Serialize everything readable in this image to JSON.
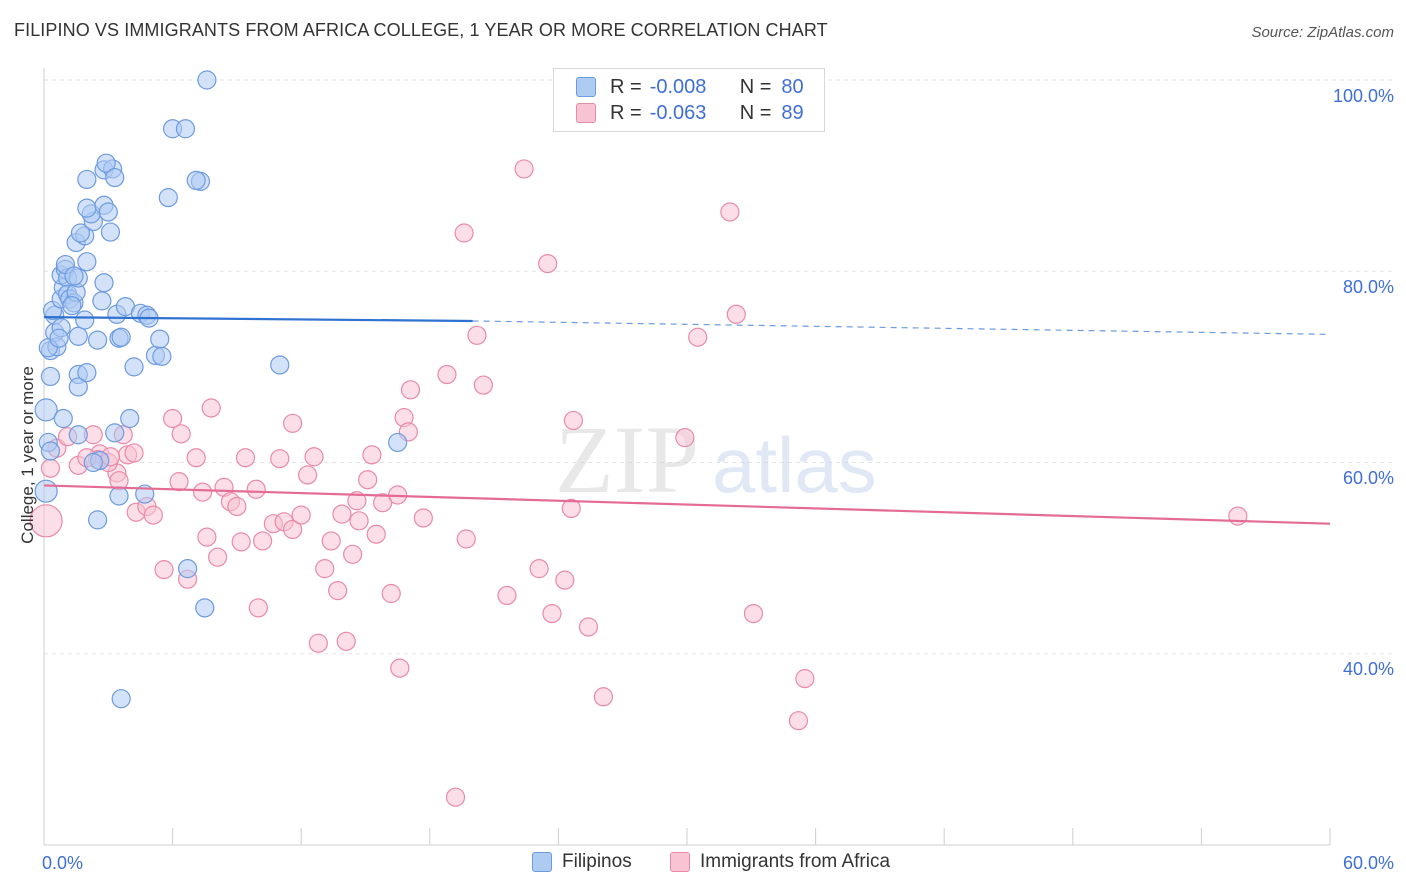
{
  "title": "FILIPINO VS IMMIGRANTS FROM AFRICA COLLEGE, 1 YEAR OR MORE CORRELATION CHART",
  "source": "Source: ZipAtlas.com",
  "watermark": {
    "zip": "ZIP",
    "atlas": "atlas"
  },
  "legend": {
    "rows": [
      {
        "r_label": "R =",
        "r_value": "-0.008",
        "n_label": "N =",
        "n_value": "80"
      },
      {
        "r_label": "R =",
        "r_value": "-0.063",
        "n_label": "N =",
        "n_value": "89"
      }
    ]
  },
  "bottom_legend": {
    "filipinos": "Filipinos",
    "africa": "Immigrants from Africa"
  },
  "colors": {
    "blue_fill": "#aecbf2",
    "blue_stroke": "#6d9be0",
    "blue_line": "#2f72d1",
    "pink_fill": "#f8c3d3",
    "pink_stroke": "#ea8aa9",
    "pink_line": "#e46b93",
    "grid": "#e3e3e3",
    "axis_text": "#3f6fd6"
  },
  "chart_data": {
    "type": "scatter",
    "title": "FILIPINO VS IMMIGRANTS FROM AFRICA COLLEGE, 1 YEAR OR MORE CORRELATION CHART",
    "xlabel": "",
    "ylabel": "College, 1 year or more",
    "xlim": [
      0,
      60
    ],
    "ylim": [
      20,
      100
    ],
    "x_tick_labels": [
      "0.0%",
      "60.0%"
    ],
    "y_tick_labels": [
      "100.0%",
      "80.0%",
      "60.0%",
      "40.0%"
    ],
    "y_ticks": [
      100,
      80,
      60,
      40
    ],
    "grid": true,
    "legend_position": "top-center",
    "series": [
      {
        "name": "Filipinos",
        "r": -0.008,
        "n": 80,
        "trend": {
          "x": [
            0,
            20
          ],
          "y": [
            75.2,
            74.8
          ],
          "dashed_to": [
            60,
            73.4
          ]
        },
        "points": [
          [
            0.1,
            65.5
          ],
          [
            0.2,
            62.1
          ],
          [
            0.1,
            57.0
          ],
          [
            0.3,
            69.0
          ],
          [
            0.3,
            71.7
          ],
          [
            0.5,
            73.6
          ],
          [
            0.6,
            72.1
          ],
          [
            0.5,
            75.4
          ],
          [
            0.4,
            75.9
          ],
          [
            0.8,
            74.1
          ],
          [
            0.8,
            77.1
          ],
          [
            0.9,
            78.3
          ],
          [
            0.8,
            79.6
          ],
          [
            1.0,
            80.2
          ],
          [
            1.1,
            79.3
          ],
          [
            1.1,
            77.6
          ],
          [
            1.2,
            77.1
          ],
          [
            1.4,
            76.7
          ],
          [
            1.5,
            77.8
          ],
          [
            1.6,
            79.3
          ],
          [
            1.0,
            80.7
          ],
          [
            1.6,
            73.2
          ],
          [
            1.6,
            69.2
          ],
          [
            1.6,
            67.9
          ],
          [
            2.0,
            69.4
          ],
          [
            1.6,
            62.9
          ],
          [
            0.9,
            64.6
          ],
          [
            1.5,
            83.0
          ],
          [
            1.9,
            83.7
          ],
          [
            1.7,
            84.0
          ],
          [
            2.3,
            85.2
          ],
          [
            2.2,
            86.0
          ],
          [
            2.0,
            86.6
          ],
          [
            2.8,
            86.9
          ],
          [
            3.0,
            86.2
          ],
          [
            2.0,
            89.6
          ],
          [
            2.8,
            90.6
          ],
          [
            3.2,
            90.7
          ],
          [
            2.9,
            91.3
          ],
          [
            3.3,
            89.8
          ],
          [
            2.0,
            81.0
          ],
          [
            3.1,
            84.1
          ],
          [
            2.8,
            78.8
          ],
          [
            3.4,
            75.5
          ],
          [
            3.5,
            73.0
          ],
          [
            3.8,
            76.3
          ],
          [
            4.2,
            70.0
          ],
          [
            4.5,
            75.6
          ],
          [
            4.8,
            75.4
          ],
          [
            5.2,
            71.2
          ],
          [
            5.4,
            72.9
          ],
          [
            5.5,
            71.1
          ],
          [
            5.8,
            87.7
          ],
          [
            6.0,
            94.9
          ],
          [
            6.6,
            94.9
          ],
          [
            7.3,
            89.4
          ],
          [
            7.1,
            89.5
          ],
          [
            7.6,
            100.0
          ],
          [
            3.3,
            63.1
          ],
          [
            4.0,
            64.6
          ],
          [
            2.6,
            60.2
          ],
          [
            2.3,
            60.0
          ],
          [
            3.5,
            56.5
          ],
          [
            4.7,
            56.7
          ],
          [
            2.5,
            54.0
          ],
          [
            6.7,
            48.9
          ],
          [
            7.5,
            44.8
          ],
          [
            3.6,
            35.3
          ],
          [
            11.0,
            70.2
          ],
          [
            16.5,
            62.1
          ],
          [
            0.2,
            72.0
          ],
          [
            0.7,
            73.0
          ],
          [
            1.3,
            76.4
          ],
          [
            2.5,
            72.8
          ],
          [
            3.6,
            73.1
          ],
          [
            4.9,
            75.1
          ],
          [
            0.3,
            61.2
          ],
          [
            1.9,
            74.9
          ],
          [
            2.7,
            76.9
          ],
          [
            1.4,
            79.5
          ]
        ]
      },
      {
        "name": "Immigrants from Africa",
        "r": -0.063,
        "n": 89,
        "trend": {
          "x": [
            0,
            60
          ],
          "y": [
            57.6,
            53.6
          ]
        },
        "points": [
          [
            0.1,
            53.9
          ],
          [
            0.3,
            59.4
          ],
          [
            0.6,
            61.5
          ],
          [
            1.1,
            62.7
          ],
          [
            1.6,
            59.7
          ],
          [
            2.3,
            62.9
          ],
          [
            2.6,
            60.9
          ],
          [
            2.5,
            60.3
          ],
          [
            2.0,
            60.5
          ],
          [
            3.4,
            58.9
          ],
          [
            3.9,
            60.8
          ],
          [
            4.2,
            61.0
          ],
          [
            3.0,
            60.0
          ],
          [
            3.5,
            58.1
          ],
          [
            4.3,
            54.8
          ],
          [
            4.8,
            55.4
          ],
          [
            5.1,
            54.5
          ],
          [
            5.6,
            48.8
          ],
          [
            6.0,
            64.6
          ],
          [
            6.3,
            58.0
          ],
          [
            6.4,
            63.0
          ],
          [
            6.7,
            47.8
          ],
          [
            7.1,
            60.5
          ],
          [
            7.4,
            56.9
          ],
          [
            7.6,
            52.2
          ],
          [
            7.8,
            65.7
          ],
          [
            8.1,
            50.1
          ],
          [
            8.4,
            57.4
          ],
          [
            8.7,
            55.9
          ],
          [
            9.0,
            55.4
          ],
          [
            9.2,
            51.7
          ],
          [
            9.4,
            60.5
          ],
          [
            9.9,
            57.2
          ],
          [
            10.0,
            44.8
          ],
          [
            10.2,
            51.8
          ],
          [
            10.7,
            53.6
          ],
          [
            11.0,
            60.4
          ],
          [
            11.2,
            53.8
          ],
          [
            11.6,
            53.0
          ],
          [
            11.6,
            64.1
          ],
          [
            12.0,
            54.5
          ],
          [
            12.3,
            58.7
          ],
          [
            12.6,
            60.6
          ],
          [
            12.8,
            41.1
          ],
          [
            13.1,
            48.9
          ],
          [
            13.4,
            51.8
          ],
          [
            13.7,
            46.6
          ],
          [
            13.9,
            54.6
          ],
          [
            14.1,
            41.3
          ],
          [
            14.4,
            50.4
          ],
          [
            14.6,
            56.0
          ],
          [
            14.7,
            53.9
          ],
          [
            15.1,
            58.2
          ],
          [
            15.3,
            60.8
          ],
          [
            15.5,
            52.5
          ],
          [
            15.8,
            55.8
          ],
          [
            16.2,
            46.3
          ],
          [
            16.5,
            56.6
          ],
          [
            16.6,
            38.5
          ],
          [
            16.8,
            64.7
          ],
          [
            17.0,
            63.2
          ],
          [
            17.1,
            67.6
          ],
          [
            17.7,
            54.2
          ],
          [
            18.8,
            69.2
          ],
          [
            19.2,
            25.0
          ],
          [
            19.6,
            84.0
          ],
          [
            19.7,
            52.0
          ],
          [
            20.2,
            73.3
          ],
          [
            20.5,
            68.1
          ],
          [
            21.6,
            46.1
          ],
          [
            22.4,
            90.7
          ],
          [
            23.1,
            48.9
          ],
          [
            23.5,
            80.8
          ],
          [
            23.7,
            44.2
          ],
          [
            24.3,
            47.7
          ],
          [
            24.6,
            55.2
          ],
          [
            24.7,
            64.4
          ],
          [
            25.4,
            42.8
          ],
          [
            26.1,
            35.5
          ],
          [
            29.9,
            62.6
          ],
          [
            30.5,
            73.1
          ],
          [
            32.0,
            86.2
          ],
          [
            32.3,
            75.5
          ],
          [
            33.1,
            44.2
          ],
          [
            35.2,
            33.0
          ],
          [
            35.5,
            37.4
          ],
          [
            55.7,
            54.4
          ],
          [
            3.1,
            60.6
          ],
          [
            3.7,
            62.9
          ]
        ]
      }
    ]
  }
}
